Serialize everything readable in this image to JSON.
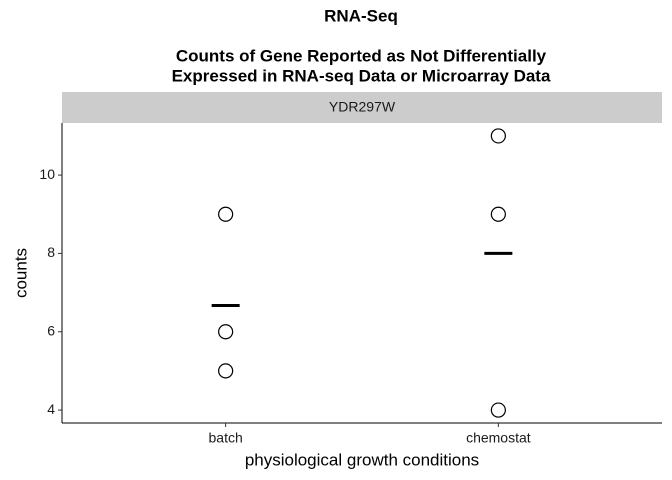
{
  "chart_data": {
    "type": "strip",
    "title": "RNA-Seq",
    "subtitle": [
      "Counts of Gene Reported as Not Differentially",
      "Expressed in RNA-seq Data or Microarray Data"
    ],
    "facet": "YDR297W",
    "x_label": "physiological growth conditions",
    "y_label": "counts",
    "categories": [
      "batch",
      "chemostat"
    ],
    "values": [
      [
        9,
        6,
        5
      ],
      [
        11,
        9,
        4
      ]
    ],
    "mean_values": [
      6.67,
      8
    ],
    "ylim": [
      3.67,
      11.33
    ],
    "yticks": [
      4,
      6,
      8,
      10
    ],
    "color": "#000000"
  }
}
